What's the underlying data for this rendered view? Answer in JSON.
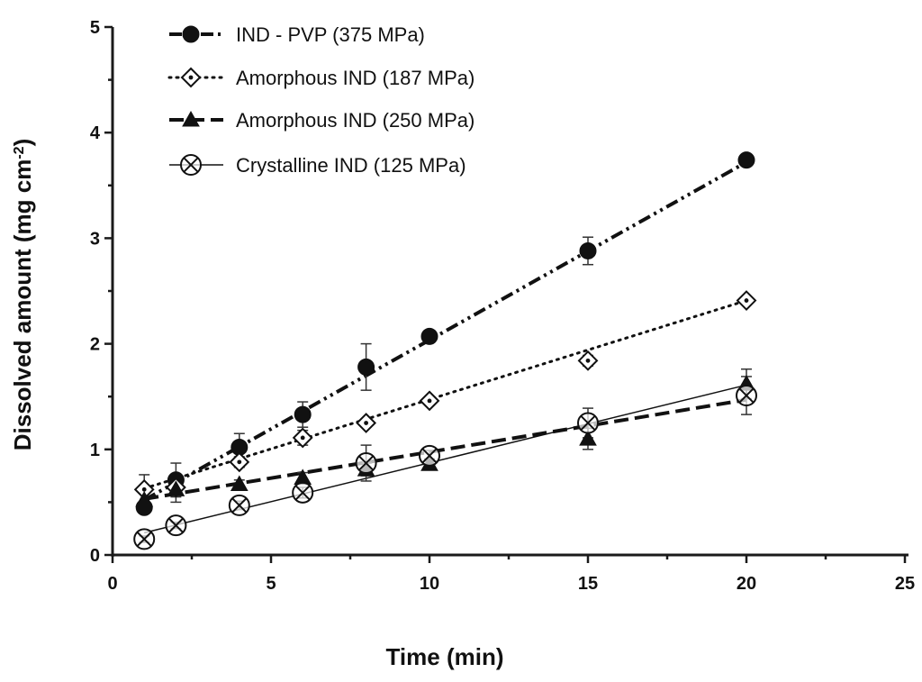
{
  "chart_data": {
    "type": "scatter",
    "title": "",
    "xlabel": "Time (min)",
    "ylabel": "Dissolved amount (mg cm",
    "ylabel_sup": "-2",
    "ylabel_end": ")",
    "xlim": [
      0,
      25
    ],
    "ylim": [
      0,
      5
    ],
    "xticks": [
      0,
      5,
      10,
      15,
      20,
      25
    ],
    "yticks": [
      0,
      1,
      2,
      3,
      4,
      5
    ],
    "legend_position": "top-left",
    "series": [
      {
        "name": "IND - PVP (375 MPa)",
        "marker": "filled-circle",
        "line": "dash-dot-dot",
        "x": [
          1,
          2,
          4,
          6,
          8,
          10,
          15,
          20
        ],
        "y": [
          0.45,
          0.71,
          1.02,
          1.33,
          1.78,
          2.07,
          2.88,
          3.74
        ],
        "err": [
          0.05,
          0.16,
          0.13,
          0.12,
          0.22,
          0.04,
          0.13,
          0.03
        ],
        "fit": [
          [
            1,
            0.52
          ],
          [
            20,
            3.72
          ]
        ]
      },
      {
        "name": "Amorphous IND (187 MPa)",
        "marker": "dotted-diamond",
        "line": "dotted",
        "x": [
          1,
          2,
          4,
          6,
          8,
          10,
          15,
          20
        ],
        "y": [
          0.62,
          0.64,
          0.88,
          1.11,
          1.25,
          1.46,
          1.84,
          2.41
        ],
        "err": [
          0.14,
          0.04,
          0.05,
          0.07,
          0.04,
          0.04,
          0.05,
          0.04
        ],
        "fit": [
          [
            1,
            0.63
          ],
          [
            20,
            2.41
          ]
        ]
      },
      {
        "name": "Amorphous IND (250 MPa)",
        "marker": "filled-triangle",
        "line": "dashed",
        "x": [
          1,
          2,
          4,
          6,
          8,
          10,
          15,
          20
        ],
        "y": [
          0.52,
          0.62,
          0.67,
          0.73,
          0.81,
          0.86,
          1.1,
          1.62
        ],
        "err": [
          0.08,
          0.12,
          0.04,
          0.05,
          0.06,
          0.05,
          0.1,
          0.14
        ],
        "fit": [
          [
            1,
            0.53
          ],
          [
            20,
            1.47
          ]
        ]
      },
      {
        "name": "Crystalline IND (125 MPa)",
        "marker": "crossed-circle",
        "line": "solid",
        "x": [
          1,
          2,
          4,
          6,
          8,
          10,
          15,
          20
        ],
        "y": [
          0.15,
          0.28,
          0.47,
          0.59,
          0.87,
          0.94,
          1.25,
          1.51
        ],
        "err": [
          0.03,
          0.03,
          0.04,
          0.05,
          0.17,
          0.05,
          0.14,
          0.18
        ],
        "fit": [
          [
            1,
            0.21
          ],
          [
            20,
            1.61
          ]
        ]
      }
    ]
  }
}
